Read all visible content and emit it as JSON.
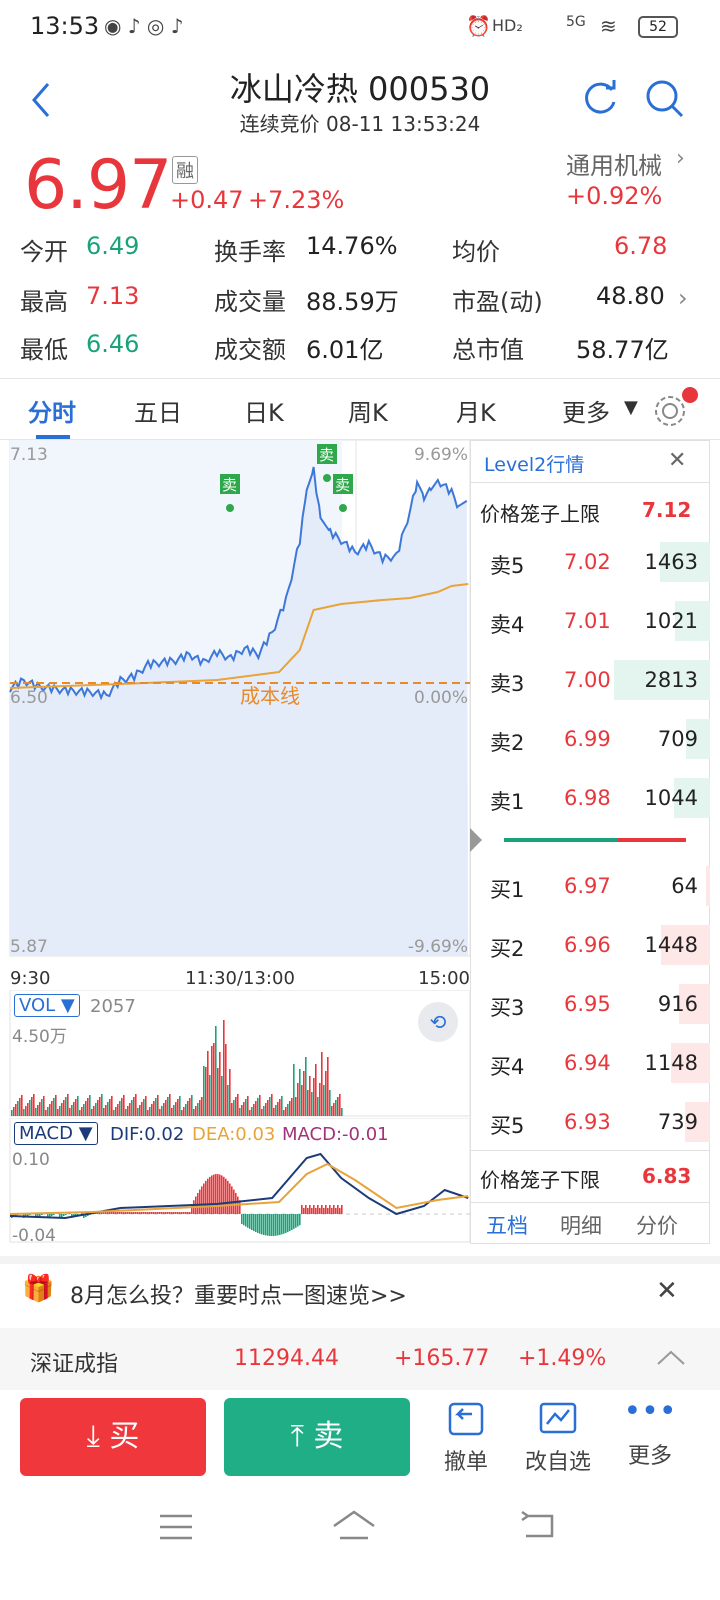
{
  "status": {
    "time": "13:53",
    "network": "5G",
    "battery": "52"
  },
  "header": {
    "title": "冰山冷热 000530",
    "subtitle": "连续竞价 08-11 13:53:24"
  },
  "quote": {
    "price": "6.97",
    "tag": "融",
    "change": "+0.47",
    "change_pct": "+7.23%",
    "sector": "通用机械",
    "sector_pct": "+0.92%"
  },
  "stats": [
    {
      "label": "今开",
      "value": "6.49"
    },
    {
      "label": "换手率",
      "value": "14.76%"
    },
    {
      "label": "均价",
      "value": "6.78"
    },
    {
      "label": "最高",
      "value": "7.13"
    },
    {
      "label": "成交量",
      "value": "88.59万"
    },
    {
      "label": "市盈(动)",
      "value": "48.80"
    },
    {
      "label": "最低",
      "value": "6.46"
    },
    {
      "label": "成交额",
      "value": "6.01亿"
    },
    {
      "label": "总市值",
      "value": "58.77亿"
    }
  ],
  "tabs": [
    "分时",
    "五日",
    "日K",
    "周K",
    "月K",
    "更多"
  ],
  "chart": {
    "y_top": "7.13",
    "y_mid": "6.50",
    "y_bot": "5.87",
    "pct_top": "9.69%",
    "pct_mid": "0.00%",
    "pct_bot": "-9.69%",
    "cost_line": "成本线",
    "x_labels": [
      "9:30",
      "11:30/13:00",
      "15:00"
    ],
    "sell_tag": "卖",
    "vol_label": "VOL",
    "vol_value": "2057",
    "vol_max": "4.50万",
    "macd_label": "MACD",
    "dif": "DIF:0.02",
    "dea": "DEA:0.03",
    "macd": "MACD:-0.01",
    "macd_top": "0.10",
    "macd_bot": "-0.04"
  },
  "orderbook": {
    "title": "Level2行情",
    "upper_label": "价格笼子上限",
    "upper": "7.12",
    "lower_label": "价格笼子下限",
    "lower": "6.83",
    "asks": [
      {
        "l": "卖5",
        "p": "7.02",
        "v": "1463"
      },
      {
        "l": "卖4",
        "p": "7.01",
        "v": "1021"
      },
      {
        "l": "卖3",
        "p": "7.00",
        "v": "2813"
      },
      {
        "l": "卖2",
        "p": "6.99",
        "v": "709"
      },
      {
        "l": "卖1",
        "p": "6.98",
        "v": "1044"
      }
    ],
    "bids": [
      {
        "l": "买1",
        "p": "6.97",
        "v": "64"
      },
      {
        "l": "买2",
        "p": "6.96",
        "v": "1448"
      },
      {
        "l": "买3",
        "p": "6.95",
        "v": "916"
      },
      {
        "l": "买4",
        "p": "6.94",
        "v": "1148"
      },
      {
        "l": "买5",
        "p": "6.93",
        "v": "739"
      }
    ],
    "tabs": [
      "五档",
      "明细",
      "分价"
    ]
  },
  "banner": {
    "text": "8月怎么投？重要时点一图速览>>"
  },
  "index": {
    "name": "深证成指",
    "value": "11294.44",
    "change": "+165.77",
    "pct": "+1.49%"
  },
  "actions": {
    "buy": "买",
    "sell": "卖",
    "cancel": "撤单",
    "watch": "改自选",
    "more": "更多"
  },
  "colors": {
    "up": "#e8373c",
    "down": "#1aa37a",
    "accent": "#2a6fd6"
  }
}
